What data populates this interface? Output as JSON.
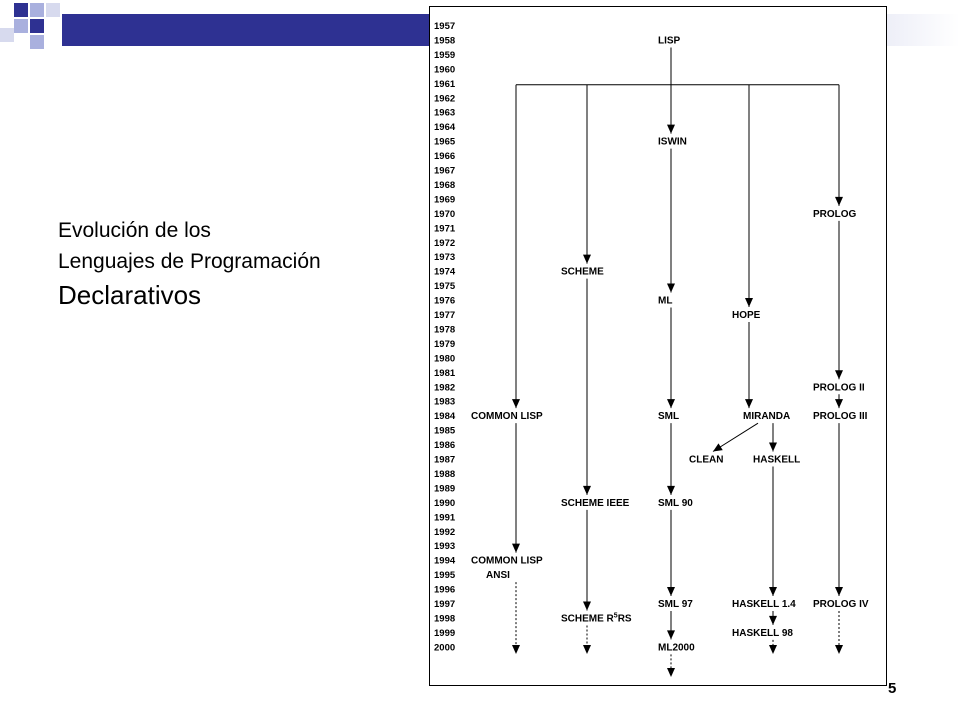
{
  "slide": {
    "title_line1": "Evolución de los",
    "title_line2": "Lenguajes de Programación",
    "title_line3": "Declarativos",
    "page_number": "5",
    "accent_colors": [
      "#2e3192",
      "#a9b0de",
      "#d7daee"
    ]
  },
  "diagram": {
    "years": [
      "1957",
      "1958",
      "1959",
      "1960",
      "1961",
      "1962",
      "1963",
      "1964",
      "1965",
      "1966",
      "1967",
      "1968",
      "1969",
      "1970",
      "1971",
      "1972",
      "1973",
      "1974",
      "1975",
      "1976",
      "1977",
      "1978",
      "1979",
      "1980",
      "1981",
      "1982",
      "1983",
      "1984",
      "1985",
      "1986",
      "1987",
      "1988",
      "1989",
      "1990",
      "1991",
      "1992",
      "1993",
      "1994",
      "1995",
      "1996",
      "1997",
      "1998",
      "1999",
      "2000"
    ],
    "languages": [
      {
        "id": "lisp",
        "label": "LISP",
        "year": "1958"
      },
      {
        "id": "iswin",
        "label": "ISWIN",
        "year": "1965"
      },
      {
        "id": "prolog",
        "label": "PROLOG",
        "year": "1970"
      },
      {
        "id": "scheme",
        "label": "SCHEME",
        "year": "1974"
      },
      {
        "id": "ml",
        "label": "ML",
        "year": "1976"
      },
      {
        "id": "hope",
        "label": "HOPE",
        "year": "1977"
      },
      {
        "id": "prolog2",
        "label": "PROLOG II",
        "year": "1982"
      },
      {
        "id": "commonlisp",
        "label": "COMMON LISP",
        "year": "1984"
      },
      {
        "id": "sml",
        "label": "SML",
        "year": "1984"
      },
      {
        "id": "miranda",
        "label": "MIRANDA",
        "year": "1984"
      },
      {
        "id": "prolog3",
        "label": "PROLOG III",
        "year": "1984"
      },
      {
        "id": "clean",
        "label": "CLEAN",
        "year": "1987"
      },
      {
        "id": "haskell",
        "label": "HASKELL",
        "year": "1987"
      },
      {
        "id": "schemeieee",
        "label": "SCHEME IEEE",
        "year": "1990"
      },
      {
        "id": "sml90",
        "label": "SML 90",
        "year": "1990"
      },
      {
        "id": "commonlispansi",
        "label": "COMMON LISP",
        "label2": "ANSI",
        "year": "1994"
      },
      {
        "id": "sml97",
        "label": "SML 97",
        "year": "1997"
      },
      {
        "id": "haskell14",
        "label": "HASKELL 1.4",
        "year": "1997"
      },
      {
        "id": "prolog4",
        "label": "PROLOG IV",
        "year": "1997"
      },
      {
        "id": "schemer5rs",
        "label": "SCHEME R",
        "sup": "5",
        "label_tail": "RS",
        "year": "1998"
      },
      {
        "id": "haskell98",
        "label": "HASKELL 98",
        "year": "1999"
      },
      {
        "id": "ml2000",
        "label": "ML2000",
        "year": "2000"
      }
    ],
    "edges": [
      {
        "from": "lisp",
        "to": "iswin"
      },
      {
        "from": "lisp",
        "to": "prolog"
      },
      {
        "from": "lisp",
        "to": "scheme"
      },
      {
        "from": "lisp",
        "to": "hope"
      },
      {
        "from": "lisp",
        "to": "commonlisp"
      },
      {
        "from": "iswin",
        "to": "ml"
      },
      {
        "from": "ml",
        "to": "sml"
      },
      {
        "from": "sml",
        "to": "sml90"
      },
      {
        "from": "sml90",
        "to": "sml97"
      },
      {
        "from": "sml97",
        "to": "ml2000"
      },
      {
        "from": "scheme",
        "to": "schemeieee"
      },
      {
        "from": "schemeieee",
        "to": "schemer5rs"
      },
      {
        "from": "hope",
        "to": "miranda"
      },
      {
        "from": "miranda",
        "to": "clean"
      },
      {
        "from": "miranda",
        "to": "haskell"
      },
      {
        "from": "haskell",
        "to": "haskell14"
      },
      {
        "from": "haskell14",
        "to": "haskell98"
      },
      {
        "from": "prolog",
        "to": "prolog2"
      },
      {
        "from": "prolog2",
        "to": "prolog3"
      },
      {
        "from": "prolog3",
        "to": "prolog4"
      },
      {
        "from": "commonlisp",
        "to": "commonlispansi"
      }
    ],
    "continuations": [
      "commonlispansi",
      "schemer5rs",
      "ml2000",
      "haskell98",
      "prolog4"
    ]
  }
}
